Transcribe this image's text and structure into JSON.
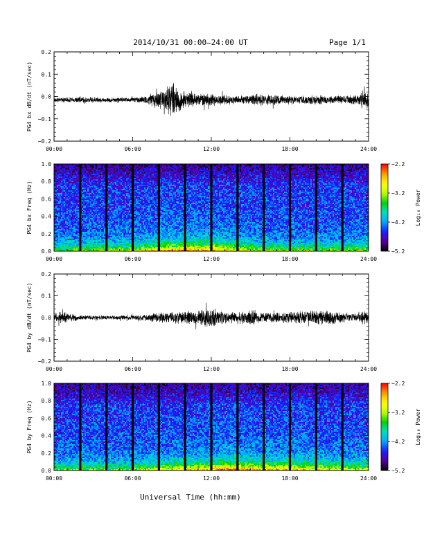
{
  "header": {
    "title": "2014/10/31  00:00–24:00 UT",
    "page": "Page 1/1"
  },
  "footer": {
    "xlabel": "Universal Time (hh:mm)"
  },
  "colors": {
    "trace": "#000000",
    "axis": "#000000",
    "colormap": [
      "#000000",
      "#5a00a0",
      "#1a1aff",
      "#00aaff",
      "#00e0c0",
      "#00d000",
      "#c8ff00",
      "#ffff00",
      "#ff9900",
      "#ff0000"
    ]
  },
  "chart_data": [
    {
      "type": "line",
      "ylabel": "PG4 bx dB/dt (nT/sec)",
      "xlim": [
        0,
        24
      ],
      "ylim": [
        -0.2,
        0.2
      ],
      "x_ticks": [
        "00:00",
        "06:00",
        "12:00",
        "18:00",
        "24:00"
      ],
      "y_ticks": [
        "0.2",
        "0.1",
        "0.0",
        "−0.1",
        "−0.2"
      ],
      "baseline": -0.015,
      "amplitude_envelope_x": [
        0,
        2,
        4,
        6,
        7,
        8,
        8.5,
        9,
        9.5,
        10,
        11,
        12,
        13,
        14,
        15,
        16,
        17,
        18,
        19,
        20,
        21,
        22,
        23,
        23.5,
        24
      ],
      "amplitude_envelope": [
        0.01,
        0.015,
        0.012,
        0.012,
        0.02,
        0.045,
        0.07,
        0.09,
        0.06,
        0.04,
        0.03,
        0.03,
        0.025,
        0.02,
        0.025,
        0.03,
        0.025,
        0.02,
        0.02,
        0.025,
        0.02,
        0.02,
        0.025,
        0.045,
        0.04
      ]
    },
    {
      "type": "heatmap",
      "ylabel": "PG4 bx Freq (Hz)",
      "colorbar_label": "Log₁₀ Power",
      "colorbar_ticks": [
        "−2.2",
        "−3.2",
        "−4.2",
        "−5.2"
      ],
      "zlim": [
        -5.2,
        -2.2
      ],
      "xlim": [
        0,
        24
      ],
      "ylim": [
        0,
        1
      ],
      "x_ticks": [
        "00:00",
        "06:00",
        "12:00",
        "18:00",
        "24:00"
      ],
      "y_ticks": [
        "1.0",
        "0.8",
        "0.6",
        "0.4",
        "0.2",
        "0.0"
      ],
      "gaps_hours": [
        2,
        4,
        6,
        8,
        10,
        12,
        14,
        16,
        18,
        20,
        22
      ],
      "low_freq_enhancement_x": [
        0,
        6,
        8,
        10,
        12,
        14,
        16,
        18,
        20,
        22,
        24
      ],
      "low_freq_enhancement": [
        0.5,
        0.6,
        0.85,
        0.95,
        0.9,
        0.75,
        0.6,
        0.55,
        0.55,
        0.55,
        0.6
      ]
    },
    {
      "type": "line",
      "ylabel": "PG4 by dB/dt (nT/sec)",
      "xlim": [
        0,
        24
      ],
      "ylim": [
        -0.2,
        0.2
      ],
      "x_ticks": [
        "00:00",
        "06:00",
        "12:00",
        "18:00",
        "24:00"
      ],
      "y_ticks": [
        "0.2",
        "0.1",
        "0.0",
        "−0.1",
        "−0.2"
      ],
      "baseline": 0.0,
      "amplitude_envelope_x": [
        0,
        0.5,
        2,
        4,
        6,
        7,
        8,
        9,
        10,
        11,
        12,
        13,
        14,
        15,
        16,
        17,
        18,
        19,
        20,
        21,
        22,
        23,
        23.5,
        24
      ],
      "amplitude_envelope": [
        0.015,
        0.03,
        0.012,
        0.01,
        0.012,
        0.018,
        0.025,
        0.03,
        0.03,
        0.035,
        0.05,
        0.03,
        0.03,
        0.04,
        0.025,
        0.025,
        0.03,
        0.03,
        0.04,
        0.035,
        0.025,
        0.02,
        0.035,
        0.03
      ]
    },
    {
      "type": "heatmap",
      "ylabel": "PG4 by Freq (Hz)",
      "colorbar_label": "Log₁₀ Power",
      "colorbar_ticks": [
        "−2.2",
        "−3.2",
        "−4.2",
        "−5.2"
      ],
      "zlim": [
        -5.2,
        -2.2
      ],
      "xlim": [
        0,
        24
      ],
      "ylim": [
        0,
        1
      ],
      "x_ticks": [
        "00:00",
        "06:00",
        "12:00",
        "18:00",
        "24:00"
      ],
      "y_ticks": [
        "1.0",
        "0.8",
        "0.6",
        "0.4",
        "0.2",
        "0.0"
      ],
      "gaps_hours": [
        2,
        4,
        6,
        8,
        10,
        12,
        14,
        16,
        18,
        20,
        22
      ],
      "low_freq_enhancement_x": [
        0,
        6,
        8,
        10,
        12,
        13,
        14,
        16,
        18,
        20,
        22,
        24
      ],
      "low_freq_enhancement": [
        0.5,
        0.55,
        0.7,
        0.8,
        0.9,
        1.0,
        0.95,
        0.9,
        0.85,
        0.8,
        0.7,
        0.65
      ]
    }
  ]
}
